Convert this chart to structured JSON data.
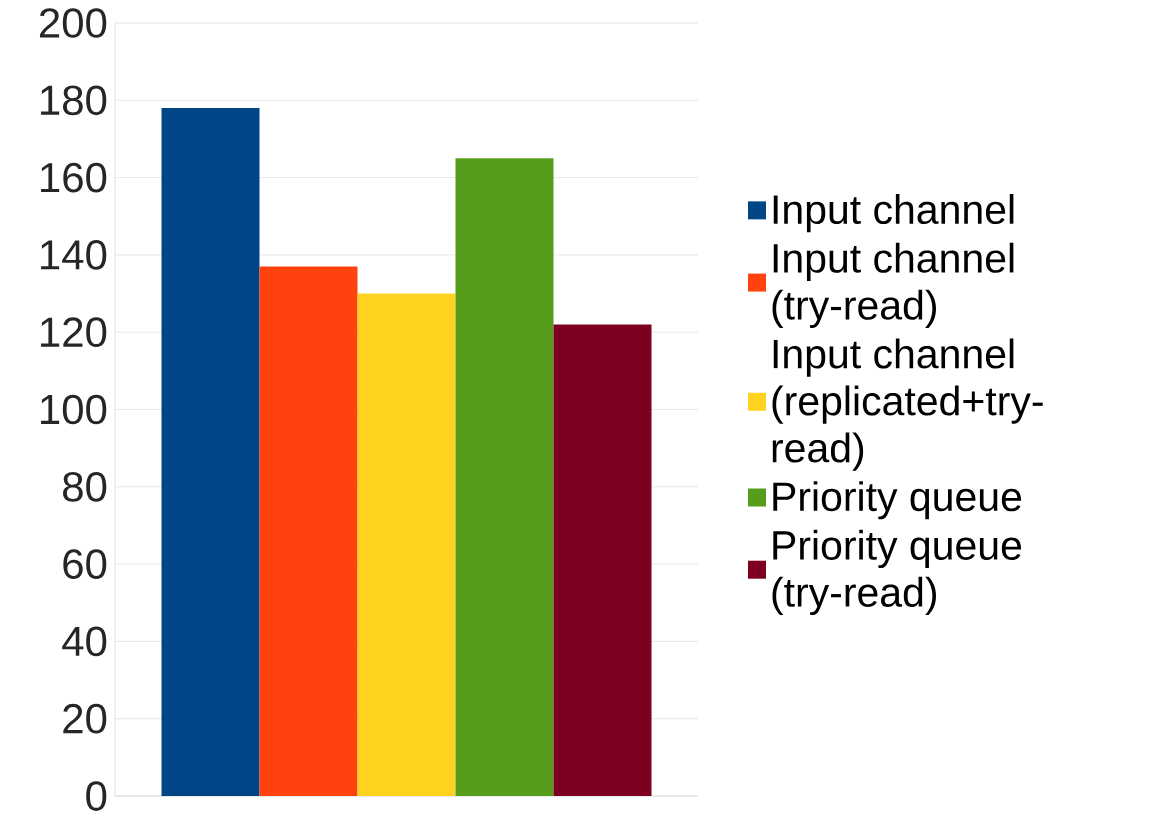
{
  "chart_data": {
    "type": "bar",
    "categories": [
      null
    ],
    "series": [
      {
        "name": "Input channel",
        "color": "#004586",
        "values": [
          178
        ]
      },
      {
        "name": "Input channel (try-read)",
        "color": "#ff420e",
        "values": [
          137
        ]
      },
      {
        "name": "Input channel (replicated+try-read)",
        "color": "#ffd320",
        "values": [
          130
        ]
      },
      {
        "name": "Priority queue",
        "color": "#579d1c",
        "values": [
          165
        ]
      },
      {
        "name": "Priority queue (try-read)",
        "color": "#7e0021",
        "values": [
          122
        ]
      }
    ],
    "ylim": [
      0,
      200
    ],
    "yticks": [
      0,
      20,
      40,
      60,
      80,
      100,
      120,
      140,
      160,
      180,
      200
    ],
    "grid": "y",
    "legend": "right"
  }
}
